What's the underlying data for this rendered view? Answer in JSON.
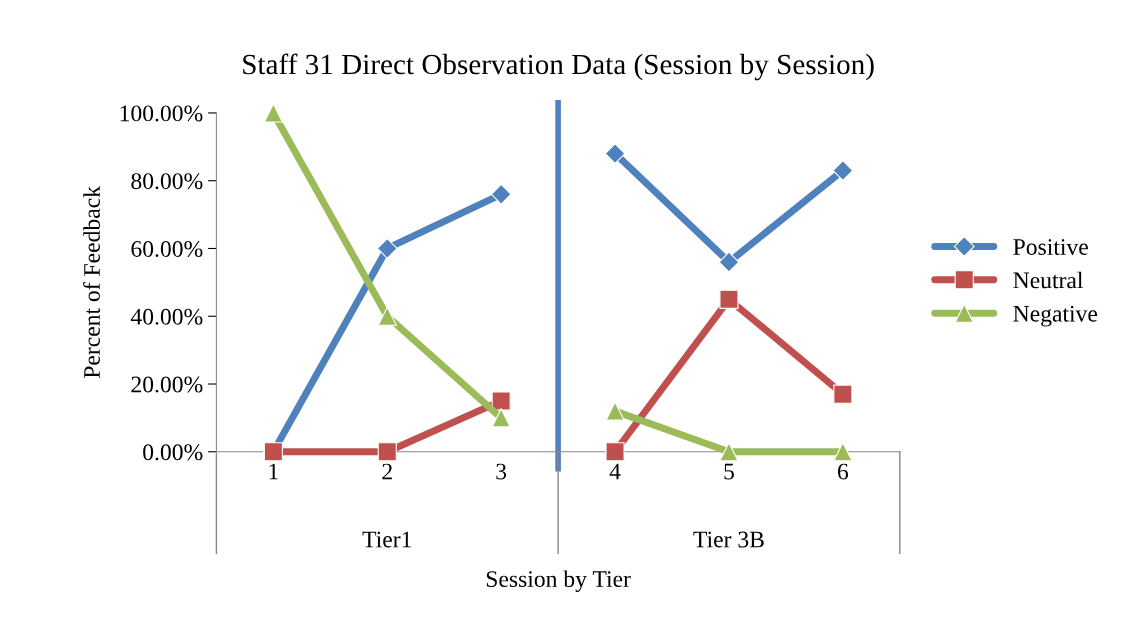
{
  "chart_data": {
    "type": "line",
    "title": "Staff 31 Direct Observation Data (Session by Session)",
    "xlabel": "Session by Tier",
    "ylabel": "Percent of Feedback",
    "x": [
      1,
      2,
      3,
      4,
      5,
      6
    ],
    "xlim": [
      0.5,
      6.5
    ],
    "xticks": [
      1,
      2,
      3,
      4,
      5,
      6
    ],
    "ylim": [
      0,
      100
    ],
    "yticks": [
      {
        "value": 0,
        "label": "0.00%"
      },
      {
        "value": 20,
        "label": "20.00%"
      },
      {
        "value": 40,
        "label": "40.00%"
      },
      {
        "value": 60,
        "label": "60.00%"
      },
      {
        "value": 80,
        "label": "80.00%"
      },
      {
        "value": 100,
        "label": "100.00%"
      }
    ],
    "series": [
      {
        "name": "Positive",
        "color": "#4f81bd",
        "marker": "diamond",
        "values": [
          0,
          60,
          76,
          88,
          56,
          83
        ]
      },
      {
        "name": "Neutral",
        "color": "#c0504d",
        "marker": "square",
        "values": [
          0,
          0,
          15,
          0,
          45,
          17
        ]
      },
      {
        "name": "Negative",
        "color": "#9bbb59",
        "marker": "triangle",
        "values": [
          100,
          40,
          10,
          12,
          0,
          0
        ]
      }
    ],
    "ref_lines": [
      {
        "axis": "x",
        "value": 3.5,
        "color": "#4f81bd"
      }
    ],
    "annotations": [
      "Tier1",
      "Tier 3B"
    ],
    "legend": "right",
    "grid": false
  }
}
